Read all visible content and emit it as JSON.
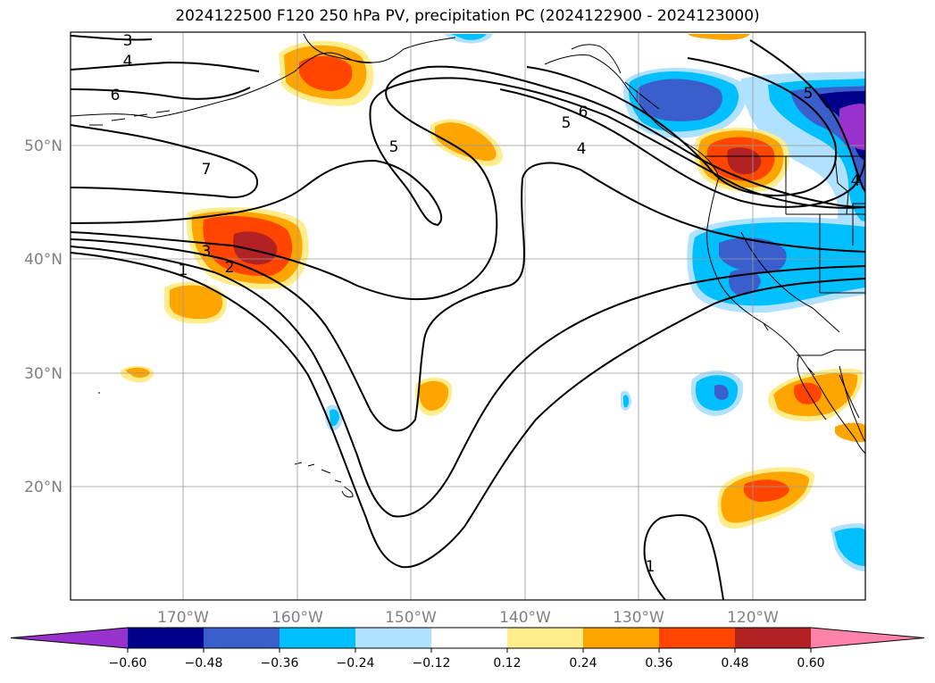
{
  "title": "2024122500 F120 250 hPa PV, precipitation PC (2024122900 - 2024123000)",
  "lon_ticks": [
    "170°W",
    "160°W",
    "150°W",
    "140°W",
    "130°W",
    "120°W"
  ],
  "lat_ticks": [
    "50°N",
    "40°N",
    "30°N",
    "20°N"
  ],
  "colorbar": {
    "ticks": [
      "−0.60",
      "−0.48",
      "−0.36",
      "−0.24",
      "−0.12",
      "0.12",
      "0.24",
      "0.36",
      "0.48",
      "0.60"
    ],
    "colors": [
      "#9932cc",
      "#00008b",
      "#3a5fcd",
      "#00bfff",
      "#b0e2ff",
      "#ffffff",
      "#ffec8b",
      "#ffa500",
      "#ff4500",
      "#b22222",
      "#ff82ab"
    ]
  },
  "contour_labels": [
    "3",
    "4",
    "6",
    "7",
    "5",
    "6",
    "5",
    "4",
    "3",
    "2",
    "1",
    "5",
    "4",
    "1"
  ]
}
